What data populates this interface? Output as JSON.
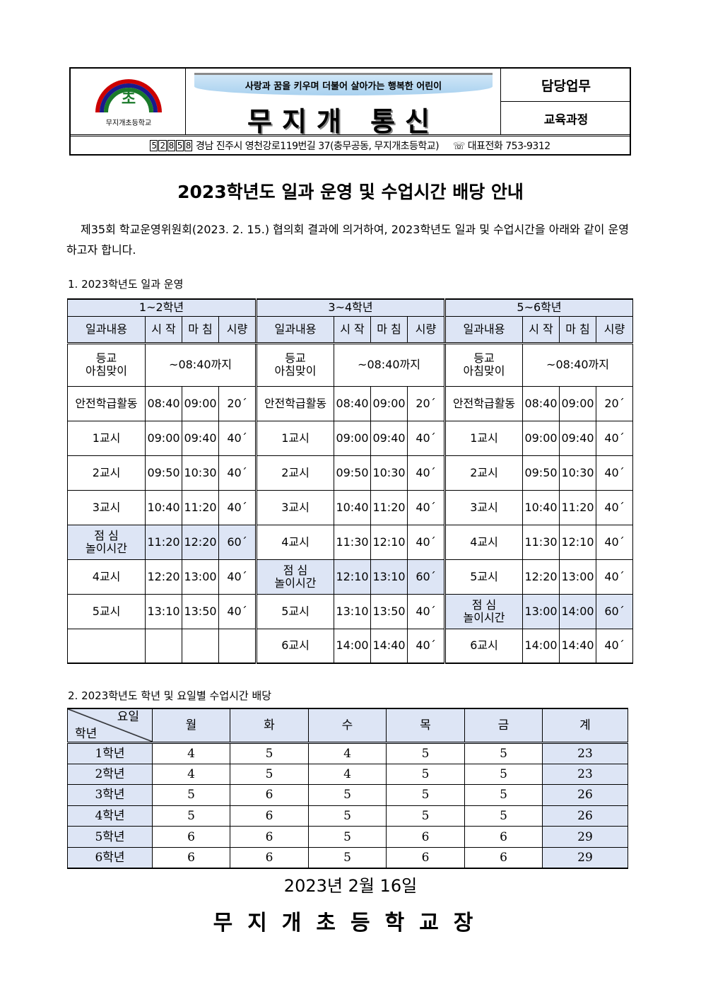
{
  "header": {
    "slogan": "사랑과 꿈을 키우며 더불어 살아가는 행복한 어린이",
    "newsletter_title": "무지개 통신",
    "dept_label": "담당업무",
    "dept_value": "교육과정",
    "postal_code": "52858",
    "address": "경남 진주시 영천강로119번길 37(충무공동, 무지개초등학교)",
    "phone_label": "☏ 대표전화 753-9312",
    "logo_text": "무지개초등학교 MUJIGAE ELEMENTARY SCHOOL 초"
  },
  "title": "2023학년도 일과 운영 및 수업시간 배당 안내",
  "intro": "제35회 학교운영위원회(2023. 2. 15.) 협의회 결과에 의거하여, 2023학년도 일과 및 수업시간을 아래와 같이 운영하고자 합니다.",
  "section1": "1. 2023학년도 일과 운영",
  "columns": [
    "일과내용",
    "시 작",
    "마 침",
    "시량"
  ],
  "arrival": {
    "label": "등교\n아침맞이",
    "time": "~08:40까지"
  },
  "groups": [
    {
      "name": "1~2학년",
      "rows": [
        [
          "안전학급활동",
          "08:40",
          "09:00",
          "20´",
          false
        ],
        [
          "1교시",
          "09:00",
          "09:40",
          "40´",
          false
        ],
        [
          "2교시",
          "09:50",
          "10:30",
          "40´",
          false
        ],
        [
          "3교시",
          "10:40",
          "11:20",
          "40´",
          false
        ],
        [
          "점  심\n놀이시간",
          "11:20",
          "12:20",
          "60´",
          true
        ],
        [
          "4교시",
          "12:20",
          "13:00",
          "40´",
          false
        ],
        [
          "5교시",
          "13:10",
          "13:50",
          "40´",
          false
        ],
        [
          "",
          "",
          "",
          "",
          false
        ]
      ]
    },
    {
      "name": "3~4학년",
      "rows": [
        [
          "안전학급활동",
          "08:40",
          "09:00",
          "20´",
          false
        ],
        [
          "1교시",
          "09:00",
          "09:40",
          "40´",
          false
        ],
        [
          "2교시",
          "09:50",
          "10:30",
          "40´",
          false
        ],
        [
          "3교시",
          "10:40",
          "11:20",
          "40´",
          false
        ],
        [
          "4교시",
          "11:30",
          "12:10",
          "40´",
          false
        ],
        [
          "점  심\n놀이시간",
          "12:10",
          "13:10",
          "60´",
          true
        ],
        [
          "5교시",
          "13:10",
          "13:50",
          "40´",
          false
        ],
        [
          "6교시",
          "14:00",
          "14:40",
          "40´",
          false
        ]
      ]
    },
    {
      "name": "5~6학년",
      "rows": [
        [
          "안전학급활동",
          "08:40",
          "09:00",
          "20´",
          false
        ],
        [
          "1교시",
          "09:00",
          "09:40",
          "40´",
          false
        ],
        [
          "2교시",
          "09:50",
          "10:30",
          "40´",
          false
        ],
        [
          "3교시",
          "10:40",
          "11:20",
          "40´",
          false
        ],
        [
          "4교시",
          "11:30",
          "12:10",
          "40´",
          false
        ],
        [
          "5교시",
          "12:20",
          "13:00",
          "40´",
          false
        ],
        [
          "점  심\n놀이시간",
          "13:00",
          "14:00",
          "60´",
          true
        ],
        [
          "6교시",
          "14:00",
          "14:40",
          "40´",
          false
        ]
      ]
    }
  ],
  "section2": "2. 2023학년도 학년 및 요일별 수업시간 배당",
  "hours": {
    "corner_day": "요일",
    "corner_grade": "학년",
    "days": [
      "월",
      "화",
      "수",
      "목",
      "금",
      "계"
    ],
    "rows": [
      [
        "1학년",
        4,
        5,
        4,
        5,
        5,
        23
      ],
      [
        "2학년",
        4,
        5,
        4,
        5,
        5,
        23
      ],
      [
        "3학년",
        5,
        6,
        5,
        5,
        5,
        26
      ],
      [
        "4학년",
        5,
        6,
        5,
        5,
        5,
        26
      ],
      [
        "5학년",
        6,
        6,
        5,
        6,
        6,
        29
      ],
      [
        "6학년",
        6,
        6,
        5,
        6,
        6,
        29
      ]
    ]
  },
  "date": "2023년 2월 16일",
  "signature": "무지개초등학교장",
  "colors": {
    "header_fill": "#dde5f5"
  }
}
